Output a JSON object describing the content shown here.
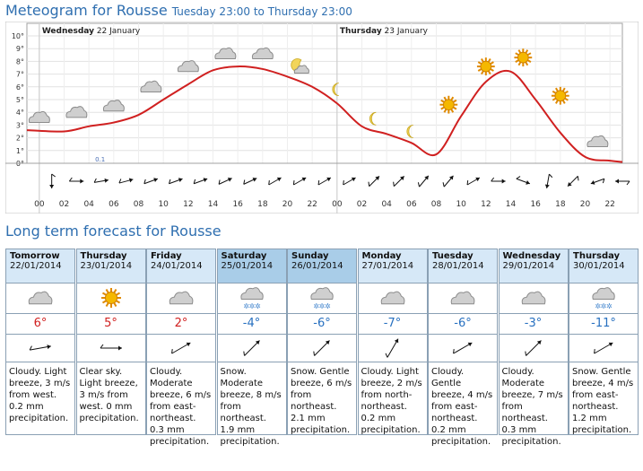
{
  "header": {
    "title": "Meteogram for Rousse",
    "range": "Tuesday 23:00 to Thursday 23:00"
  },
  "chart_data": {
    "type": "line",
    "title": "Meteogram for Rousse",
    "subtitle": "Tuesday 23:00 to Thursday 23:00",
    "day_labels": [
      {
        "day": "Wednesday",
        "date": "22 January"
      },
      {
        "day": "Thursday",
        "date": "23 January"
      }
    ],
    "x_tick_labels": [
      "00",
      "02",
      "04",
      "06",
      "08",
      "10",
      "12",
      "14",
      "16",
      "18",
      "20",
      "22",
      "00",
      "02",
      "04",
      "06",
      "08",
      "10",
      "12",
      "14",
      "16",
      "18",
      "20",
      "22"
    ],
    "y_ticks": [
      "0°",
      "1°",
      "2°",
      "3°",
      "4°",
      "5°",
      "6°",
      "7°",
      "8°",
      "9°",
      "10°"
    ],
    "ylim": [
      0,
      10
    ],
    "xlim_hours": [
      -1,
      47
    ],
    "temperature_series": {
      "color": "#d02020",
      "hours": [
        -1,
        2,
        4,
        6,
        8,
        10,
        12,
        14,
        16,
        18,
        20,
        22,
        24,
        26,
        28,
        30,
        32,
        34,
        36,
        38,
        40,
        42,
        44,
        46,
        47
      ],
      "values": [
        2.6,
        2.5,
        2.9,
        3.2,
        3.8,
        5.0,
        6.2,
        7.3,
        7.6,
        7.4,
        6.8,
        6.0,
        4.7,
        2.9,
        2.3,
        1.6,
        0.7,
        3.7,
        6.4,
        7.2,
        5.0,
        2.4,
        0.5,
        0.2,
        0.1
      ],
      "hour_unit": "hours from Wednesday 00:00"
    },
    "precipitation_label": {
      "hour": 4.5,
      "value": "0.1"
    },
    "symbols": [
      {
        "hour": 0,
        "temp": 3.5,
        "icon": "cloud"
      },
      {
        "hour": 3,
        "temp": 3.9,
        "icon": "cloud"
      },
      {
        "hour": 6,
        "temp": 4.4,
        "icon": "cloud"
      },
      {
        "hour": 9,
        "temp": 5.9,
        "icon": "cloud"
      },
      {
        "hour": 12,
        "temp": 7.5,
        "icon": "cloud"
      },
      {
        "hour": 15,
        "temp": 8.5,
        "icon": "cloud"
      },
      {
        "hour": 18,
        "temp": 8.5,
        "icon": "cloud"
      },
      {
        "hour": 21,
        "temp": 7.5,
        "icon": "moon-cloud"
      },
      {
        "hour": 24,
        "temp": 5.8,
        "icon": "moon"
      },
      {
        "hour": 27,
        "temp": 3.5,
        "icon": "moon"
      },
      {
        "hour": 30,
        "temp": 2.5,
        "icon": "moon"
      },
      {
        "hour": 33,
        "temp": 4.6,
        "icon": "sun"
      },
      {
        "hour": 36,
        "temp": 7.6,
        "icon": "sun"
      },
      {
        "hour": 39,
        "temp": 8.3,
        "icon": "sun"
      },
      {
        "hour": 42,
        "temp": 5.3,
        "icon": "sun"
      },
      {
        "hour": 45,
        "temp": 1.6,
        "icon": "cloud"
      }
    ],
    "wind_directions_deg": [
      180,
      90,
      80,
      75,
      70,
      70,
      70,
      65,
      65,
      60,
      60,
      60,
      60,
      45,
      45,
      40,
      40,
      60,
      90,
      110,
      190,
      225,
      250,
      270
    ],
    "grid": true,
    "legend": "none"
  },
  "long_term": {
    "title": "Long term forecast for Rousse",
    "days": [
      {
        "name": "Tomorrow",
        "date": "22/01/2014",
        "icon": "cloud",
        "temp": "6°",
        "sign": "pos",
        "wind_deg": 80,
        "desc": "Cloudy. Light breeze, 3 m/s from west. 0.2 mm precipitation.",
        "header_style": "light"
      },
      {
        "name": "Thursday",
        "date": "23/01/2014",
        "icon": "sun",
        "temp": "5°",
        "sign": "pos",
        "wind_deg": 90,
        "desc": "Clear sky. Light breeze, 3 m/s from west. 0 mm precipitation.",
        "header_style": "light"
      },
      {
        "name": "Friday",
        "date": "24/01/2014",
        "icon": "cloud",
        "temp": "2°",
        "sign": "pos",
        "wind_deg": 60,
        "desc": "Cloudy. Moderate breeze, 6 m/s from east-northeast. 0.3 mm precipitation.",
        "header_style": "light"
      },
      {
        "name": "Saturday",
        "date": "25/01/2014",
        "icon": "snow",
        "temp": "-4°",
        "sign": "neg",
        "wind_deg": 45,
        "desc": "Snow. Moderate breeze, 8 m/s from northeast. 1.9 mm precipitation.",
        "header_style": "dark"
      },
      {
        "name": "Sunday",
        "date": "26/01/2014",
        "icon": "snow",
        "temp": "-6°",
        "sign": "neg",
        "wind_deg": 45,
        "desc": "Snow. Gentle breeze, 6 m/s from northeast. 2.1 mm precipitation.",
        "header_style": "dark"
      },
      {
        "name": "Monday",
        "date": "27/01/2014",
        "icon": "cloud",
        "temp": "-7°",
        "sign": "neg",
        "wind_deg": 30,
        "desc": "Cloudy. Light breeze, 2 m/s from north-northeast. 0.2 mm precipitation.",
        "header_style": "light"
      },
      {
        "name": "Tuesday",
        "date": "28/01/2014",
        "icon": "cloud",
        "temp": "-6°",
        "sign": "neg",
        "wind_deg": 60,
        "desc": "Cloudy. Gentle breeze, 4 m/s from east-northeast. 0.2 mm precipitation.",
        "header_style": "light"
      },
      {
        "name": "Wednesday",
        "date": "29/01/2014",
        "icon": "cloud",
        "temp": "-3°",
        "sign": "neg",
        "wind_deg": 45,
        "desc": "Cloudy. Moderate breeze, 7 m/s from northeast. 0.3 mm precipitation.",
        "header_style": "light"
      },
      {
        "name": "Thursday",
        "date": "30/01/2014",
        "icon": "snow",
        "temp": "-11°",
        "sign": "neg",
        "wind_deg": 60,
        "desc": "Snow. Gentle breeze, 4 m/s from east-northeast. 1.2 mm precipitation.",
        "header_style": "light"
      }
    ]
  }
}
